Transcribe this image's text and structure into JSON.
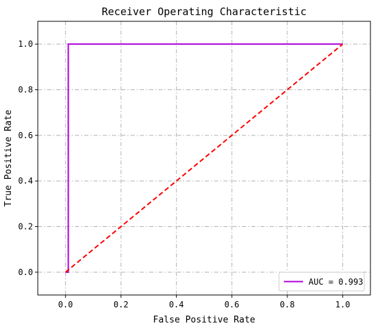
{
  "chart_data": {
    "type": "line",
    "title": "Receiver Operating Characteristic",
    "xlabel": "False Positive Rate",
    "ylabel": "True Positive Rate",
    "xlim": [
      -0.1,
      1.1
    ],
    "ylim": [
      -0.1,
      1.1
    ],
    "xticks": [
      0.0,
      0.2,
      0.4,
      0.6,
      0.8,
      1.0
    ],
    "xtick_labels": [
      "0.0",
      "0.2",
      "0.4",
      "0.6",
      "0.8",
      "1.0"
    ],
    "yticks": [
      0.0,
      0.2,
      0.4,
      0.6,
      0.8,
      1.0
    ],
    "ytick_labels": [
      "0.0",
      "0.2",
      "0.4",
      "0.6",
      "0.8",
      "1.0"
    ],
    "grid": true,
    "legend_position": "lower-right",
    "series": [
      {
        "name": "AUC = 0.993",
        "color": "#b000d8",
        "style": "solid",
        "x": [
          0.0,
          0.01,
          0.01,
          1.0
        ],
        "y": [
          0.0,
          0.0,
          1.0,
          1.0
        ]
      },
      {
        "color": "#ff0000",
        "style": "dashed",
        "x": [
          0.0,
          1.0
        ],
        "y": [
          0.0,
          1.0
        ]
      }
    ]
  }
}
